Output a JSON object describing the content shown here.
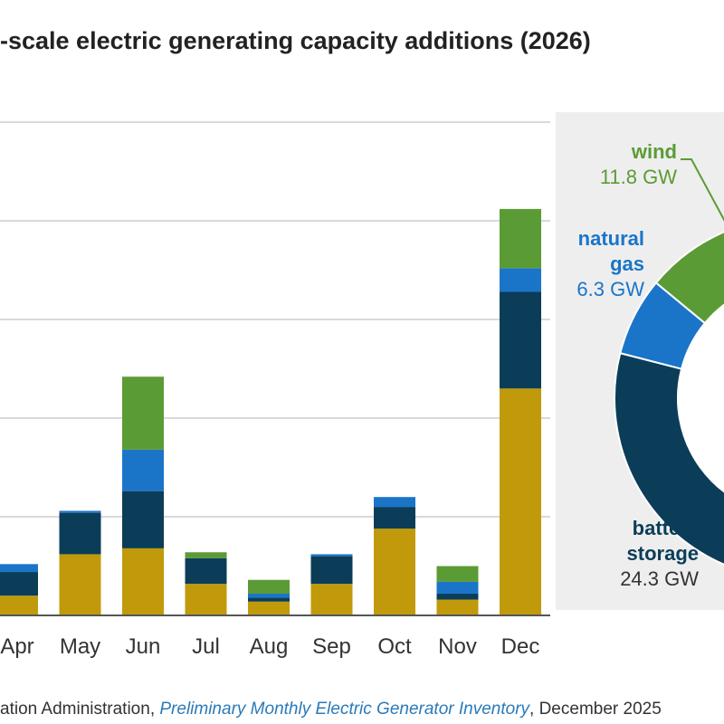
{
  "title": "-scale electric generating capacity additions (2026)",
  "chart_data": [
    {
      "type": "bar",
      "stacked": true,
      "categories": [
        "Apr",
        "May",
        "Jun",
        "Jul",
        "Aug",
        "Sep",
        "Oct",
        "Nov",
        "Dec"
      ],
      "series": [
        {
          "key": "solar",
          "color": "#c09a0b",
          "values": [
            1.0,
            3.1,
            3.4,
            1.6,
            0.7,
            1.6,
            4.4,
            0.8,
            11.5
          ]
        },
        {
          "key": "battery",
          "color": "#0b3d59",
          "values": [
            1.2,
            2.1,
            2.9,
            1.3,
            0.2,
            1.4,
            1.1,
            0.3,
            4.9
          ]
        },
        {
          "key": "natural gas",
          "color": "#1a75c9",
          "values": [
            0.4,
            0.1,
            2.1,
            0.0,
            0.2,
            0.1,
            0.5,
            0.6,
            1.2
          ]
        },
        {
          "key": "wind",
          "color": "#5b9b36",
          "values": [
            0.0,
            0.0,
            3.7,
            0.3,
            0.7,
            0.0,
            0.0,
            0.8,
            3.0
          ]
        }
      ],
      "ylim": [
        0,
        25
      ],
      "grid": true
    },
    {
      "type": "pie",
      "donut": true,
      "slices": [
        {
          "label": "wind",
          "value_text": "11.8 GW",
          "pct_text": "14",
          "pct": 14,
          "color": "#5b9b36"
        },
        {
          "label": "natural gas",
          "label_lines": [
            "natural",
            "gas"
          ],
          "value_text": "6.3 GW",
          "pct_text": "7%",
          "pct": 7,
          "color": "#1a75c9"
        },
        {
          "label": "battery storage",
          "label_lines": [
            "battery",
            "storage"
          ],
          "value_text": "24.3 GW",
          "pct_text": "28%",
          "pct": 28,
          "color": "#0b3d59"
        }
      ]
    }
  ],
  "source": {
    "prefix": "ation Administration, ",
    "publication": "Preliminary Monthly Electric Generator Inventory",
    "suffix": ", December 2025"
  }
}
